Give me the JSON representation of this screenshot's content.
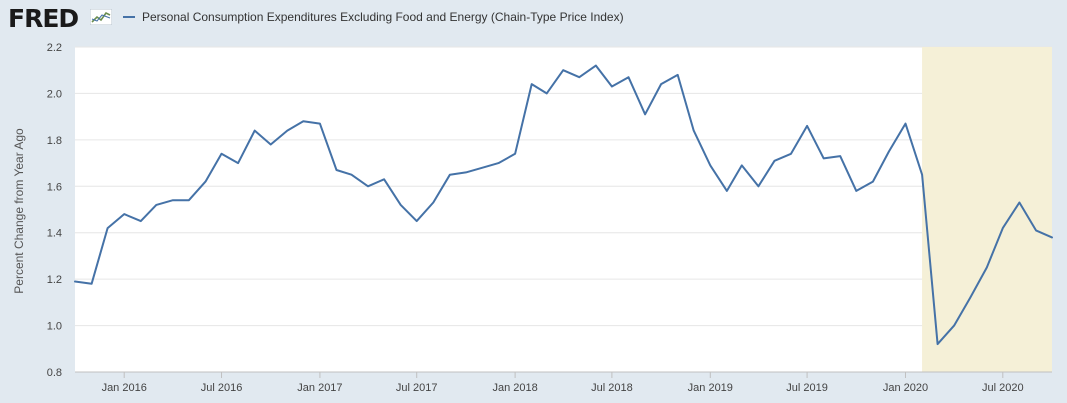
{
  "brand": {
    "name": "FRED",
    "line_color": "#4572a7"
  },
  "chart_data": {
    "type": "line",
    "title": "",
    "xlabel": "",
    "ylabel": "Percent Change from Year Ago",
    "ylim": [
      0.8,
      2.2
    ],
    "yticks": [
      "0.8",
      "1.0",
      "1.2",
      "1.4",
      "1.6",
      "1.8",
      "2.0",
      "2.2"
    ],
    "xticks": [
      {
        "label": "Jan 2016",
        "date": "2016-01-01"
      },
      {
        "label": "Jul 2016",
        "date": "2016-07-01"
      },
      {
        "label": "Jan 2017",
        "date": "2017-01-01"
      },
      {
        "label": "Jul 2017",
        "date": "2017-07-01"
      },
      {
        "label": "Jan 2018",
        "date": "2018-01-01"
      },
      {
        "label": "Jul 2018",
        "date": "2018-07-01"
      },
      {
        "label": "Jan 2019",
        "date": "2019-01-01"
      },
      {
        "label": "Jul 2019",
        "date": "2019-07-01"
      },
      {
        "label": "Jan 2020",
        "date": "2020-01-01"
      },
      {
        "label": "Jul 2020",
        "date": "2020-07-01"
      }
    ],
    "x_range": [
      "2015-10-01",
      "2020-10-01"
    ],
    "recession": {
      "start": "2020-02-01",
      "end": "2020-10-01",
      "color": "#f5f0d7"
    },
    "grid": true,
    "legend": "top-left",
    "series": [
      {
        "name": "Personal Consumption Expenditures Excluding Food and Energy (Chain-Type Price Index)",
        "color": "#4572a7",
        "x": [
          "2015-10-01",
          "2015-11-01",
          "2015-12-01",
          "2016-01-01",
          "2016-02-01",
          "2016-03-01",
          "2016-04-01",
          "2016-05-01",
          "2016-06-01",
          "2016-07-01",
          "2016-08-01",
          "2016-09-01",
          "2016-10-01",
          "2016-11-01",
          "2016-12-01",
          "2017-01-01",
          "2017-02-01",
          "2017-03-01",
          "2017-04-01",
          "2017-05-01",
          "2017-06-01",
          "2017-07-01",
          "2017-08-01",
          "2017-09-01",
          "2017-10-01",
          "2017-11-01",
          "2017-12-01",
          "2018-01-01",
          "2018-02-01",
          "2018-03-01",
          "2018-04-01",
          "2018-05-01",
          "2018-06-01",
          "2018-07-01",
          "2018-08-01",
          "2018-09-01",
          "2018-10-01",
          "2018-11-01",
          "2018-12-01",
          "2019-01-01",
          "2019-02-01",
          "2019-03-01",
          "2019-04-01",
          "2019-05-01",
          "2019-06-01",
          "2019-07-01",
          "2019-08-01",
          "2019-09-01",
          "2019-10-01",
          "2019-11-01",
          "2019-12-01",
          "2020-01-01",
          "2020-02-01",
          "2020-03-01",
          "2020-04-01",
          "2020-05-01",
          "2020-06-01",
          "2020-07-01",
          "2020-08-01",
          "2020-09-01",
          "2020-10-01"
        ],
        "values": [
          1.19,
          1.18,
          1.42,
          1.48,
          1.45,
          1.52,
          1.54,
          1.54,
          1.62,
          1.74,
          1.7,
          1.84,
          1.78,
          1.84,
          1.88,
          1.87,
          1.67,
          1.65,
          1.6,
          1.63,
          1.52,
          1.45,
          1.53,
          1.65,
          1.66,
          1.68,
          1.7,
          1.74,
          2.04,
          2.0,
          2.1,
          2.07,
          2.12,
          2.03,
          2.07,
          1.91,
          2.04,
          2.08,
          1.84,
          1.69,
          1.58,
          1.69,
          1.6,
          1.71,
          1.74,
          1.86,
          1.72,
          1.73,
          1.58,
          1.62,
          1.75,
          1.87,
          1.65,
          0.92,
          1.0,
          1.12,
          1.25,
          1.42,
          1.53,
          1.41,
          1.38
        ]
      }
    ]
  }
}
